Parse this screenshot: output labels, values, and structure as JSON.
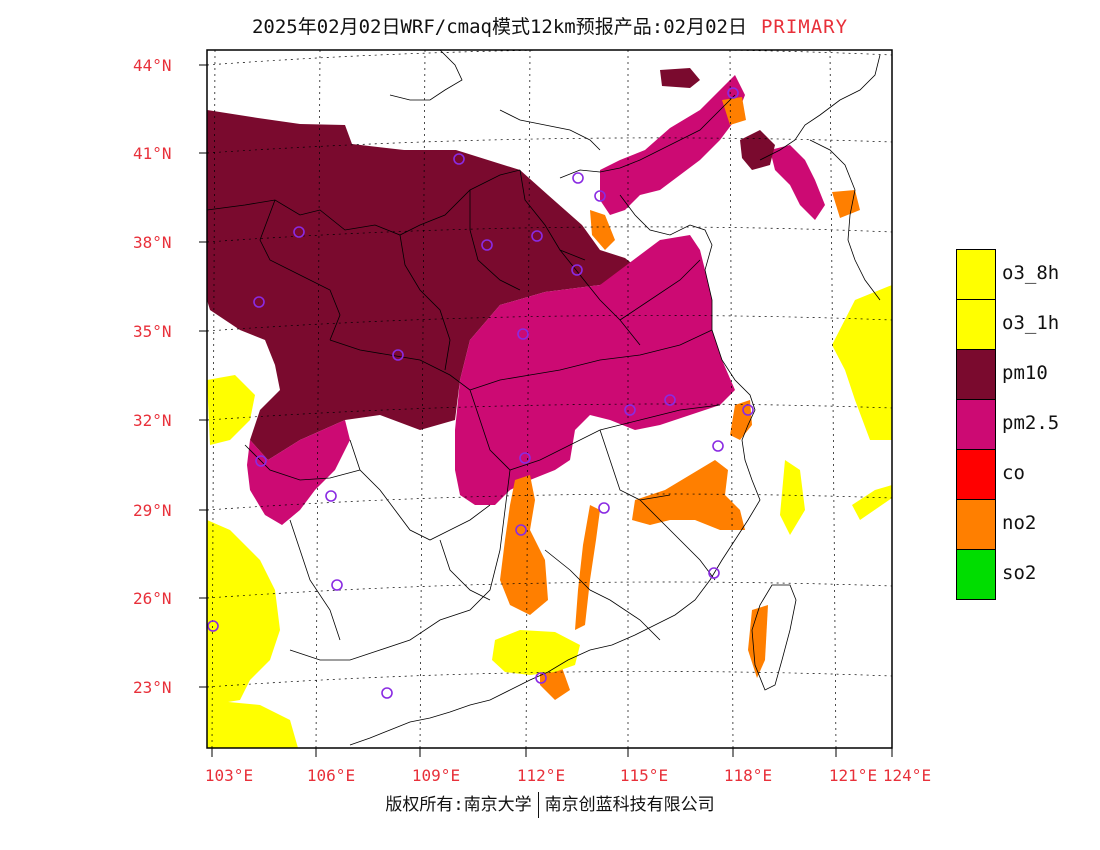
{
  "title": {
    "main": "2025年02月02日WRF/cmaq模式12km预报产品:02月02日",
    "tag": "PRIMARY"
  },
  "lat_labels": [
    "44°N",
    "41°N",
    "38°N",
    "35°N",
    "32°N",
    "29°N",
    "26°N",
    "23°N"
  ],
  "lon_labels": [
    "103°E",
    "106°E",
    "109°E",
    "112°E",
    "115°E",
    "118°E",
    "121°E",
    "124°E"
  ],
  "legend": [
    {
      "label": "o3_8h",
      "color": "#ffff00"
    },
    {
      "label": "o3_1h",
      "color": "#ffff00"
    },
    {
      "label": "pm10",
      "color": "#7a0a2e"
    },
    {
      "label": "pm2.5",
      "color": "#cc0a73"
    },
    {
      "label": "co",
      "color": "#ff0000"
    },
    {
      "label": "no2",
      "color": "#ff7f00"
    },
    {
      "label": "so2",
      "color": "#00dd00"
    }
  ],
  "footer": {
    "left": "版权所有:南京大学",
    "right": "南京创蓝科技有限公司"
  },
  "colors": {
    "pm10": "#7a0a2e",
    "pm25": "#cc0a73",
    "no2": "#ff7f00",
    "o3": "#ffff00",
    "so2": "#00dd00",
    "station": "#8a2be2",
    "axis_label": "#e8303a"
  }
}
